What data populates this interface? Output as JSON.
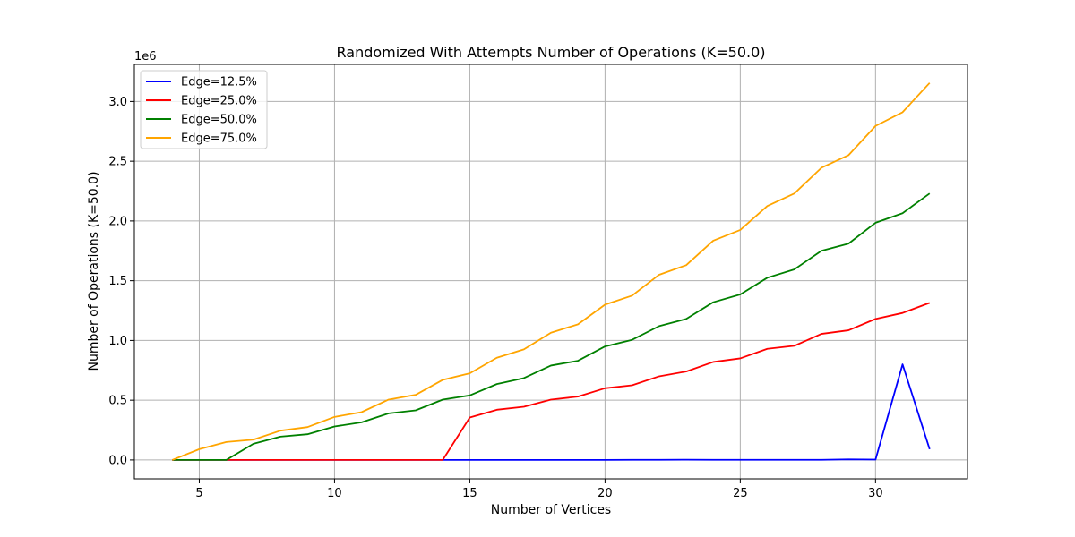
{
  "chart_data": {
    "type": "line",
    "title": "Randomized With Attempts Number of Operations (K=50.0)",
    "xlabel": "Number of Vertices",
    "ylabel": "Number of Operations (K=50.0)",
    "y_offset_label": "1e6",
    "xlim": [
      2.6,
      33.4
    ],
    "ylim": [
      -0.158,
      3.31
    ],
    "x_ticks": [
      5,
      10,
      15,
      20,
      25,
      30
    ],
    "x_tick_labels": [
      "5",
      "10",
      "15",
      "20",
      "25",
      "30"
    ],
    "y_ticks": [
      0.0,
      0.5,
      1.0,
      1.5,
      2.0,
      2.5,
      3.0
    ],
    "y_tick_labels": [
      "0.0",
      "0.5",
      "1.0",
      "1.5",
      "2.0",
      "2.5",
      "3.0"
    ],
    "grid": true,
    "legend_position": "top-left",
    "x": [
      4,
      5,
      6,
      7,
      8,
      9,
      10,
      11,
      12,
      13,
      14,
      15,
      16,
      17,
      18,
      19,
      20,
      21,
      22,
      23,
      24,
      25,
      26,
      27,
      28,
      29,
      30,
      31,
      32
    ],
    "series": [
      {
        "name": "Edge=12.5%",
        "color": "#0000ff",
        "values": [
          0,
          0,
          0,
          0,
          0,
          0,
          0,
          0,
          0,
          0,
          0,
          0,
          0,
          0,
          0,
          0,
          0,
          0.001,
          0.001,
          0.002,
          0.001,
          0.001,
          0.001,
          0.001,
          0.001,
          0.005,
          0.003,
          0.8,
          0.09
        ]
      },
      {
        "name": "Edge=25.0%",
        "color": "#ff0000",
        "values": [
          0,
          0,
          0,
          0,
          0,
          0,
          0,
          0,
          0,
          0,
          0,
          0.355,
          0.42,
          0.445,
          0.505,
          0.53,
          0.6,
          0.625,
          0.7,
          0.74,
          0.82,
          0.85,
          0.93,
          0.955,
          1.055,
          1.085,
          1.18,
          1.23,
          1.315
        ]
      },
      {
        "name": "Edge=50.0%",
        "color": "#008000",
        "values": [
          0,
          0,
          0,
          0.135,
          0.195,
          0.215,
          0.28,
          0.315,
          0.39,
          0.415,
          0.505,
          0.54,
          0.635,
          0.685,
          0.79,
          0.83,
          0.95,
          1.005,
          1.12,
          1.18,
          1.32,
          1.385,
          1.525,
          1.595,
          1.75,
          1.81,
          1.985,
          2.065,
          2.23
        ]
      },
      {
        "name": "Edge=75.0%",
        "color": "#ffa500",
        "values": [
          0,
          0.09,
          0.15,
          0.17,
          0.245,
          0.275,
          0.36,
          0.4,
          0.505,
          0.545,
          0.67,
          0.725,
          0.855,
          0.925,
          1.065,
          1.135,
          1.3,
          1.375,
          1.55,
          1.63,
          1.835,
          1.925,
          2.125,
          2.23,
          2.445,
          2.55,
          2.795,
          2.91,
          3.155
        ]
      }
    ]
  },
  "colors": {
    "grid": "#b0b0b0",
    "axes": "#000000",
    "legend_border": "#cccccc"
  }
}
